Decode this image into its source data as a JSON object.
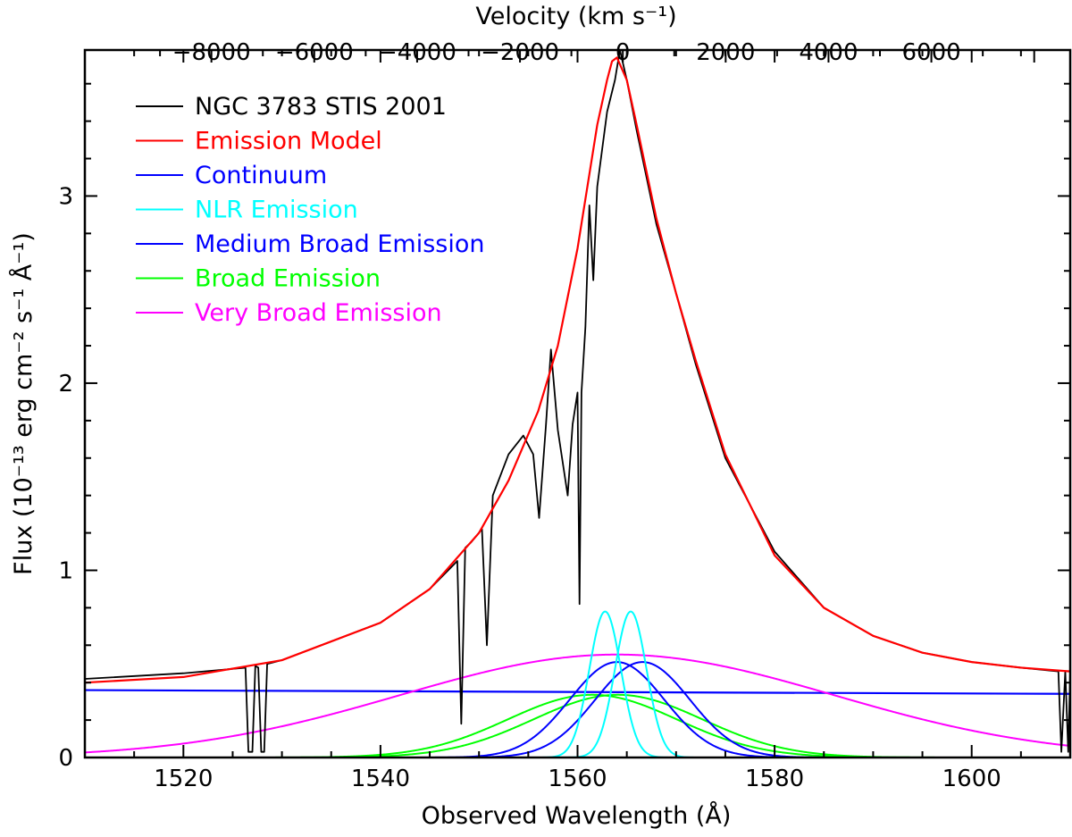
{
  "chart_data": {
    "type": "line",
    "title": "",
    "xlabel": "Observed Wavelength (Å)",
    "ylabel": "Flux (10⁻¹³ erg cm⁻² s⁻¹ Å⁻¹)",
    "top_xlabel": "Velocity (km s⁻¹)",
    "xlim": [
      1510,
      1610
    ],
    "ylim": [
      0,
      3.78
    ],
    "x_ticks": [
      1520,
      1540,
      1560,
      1580,
      1600
    ],
    "x_tick_labels": [
      "1520",
      "1540",
      "1560",
      "1580",
      "1600"
    ],
    "y_ticks": [
      0,
      1,
      2,
      3
    ],
    "y_tick_labels": [
      "0",
      "1",
      "2",
      "3"
    ],
    "top_ticks": [
      -8000,
      -6000,
      -4000,
      -2000,
      0,
      2000,
      4000,
      6000
    ],
    "top_tick_labels": [
      "−8000",
      "−6000",
      "−4000",
      "−2000",
      "0",
      "2000",
      "4000",
      "6000"
    ],
    "top_axis_rest_wavelength": 1549.48,
    "top_axis_systemic_z": 0.009755,
    "legend_position": "top-left",
    "legend": [
      {
        "label": "NGC 3783 STIS 2001",
        "color": "#000000"
      },
      {
        "label": "Emission Model",
        "color": "#ff0000"
      },
      {
        "label": "Continuum",
        "color": "#0000ff"
      },
      {
        "label": "NLR Emission",
        "color": "#00ffff"
      },
      {
        "label": "Medium Broad Emission",
        "color": "#0000ff"
      },
      {
        "label": "Broad Emission",
        "color": "#00ff00"
      },
      {
        "label": "Very Broad Emission",
        "color": "#ff00ff"
      }
    ],
    "series": [
      {
        "name": "Continuum",
        "color": "#0000ff",
        "x": [
          1510,
          1610
        ],
        "y": [
          0.36,
          0.34
        ]
      },
      {
        "name": "NLR Emission",
        "color": "#00ffff",
        "components": [
          {
            "center": 1562.8,
            "amplitude": 0.78,
            "sigma": 1.6
          },
          {
            "center": 1565.4,
            "amplitude": 0.78,
            "sigma": 1.6
          }
        ]
      },
      {
        "name": "Medium Broad Emission",
        "color": "#0000ff",
        "components": [
          {
            "center": 1564.0,
            "amplitude": 0.51,
            "sigma": 4.8
          },
          {
            "center": 1566.6,
            "amplitude": 0.51,
            "sigma": 4.8
          }
        ]
      },
      {
        "name": "Broad Emission",
        "color": "#00ff00",
        "components": [
          {
            "center": 1561.5,
            "amplitude": 0.335,
            "sigma": 8.6
          },
          {
            "center": 1564.1,
            "amplitude": 0.335,
            "sigma": 8.6
          }
        ]
      },
      {
        "name": "Very Broad Emission",
        "color": "#ff00ff",
        "components": [
          {
            "center": 1564.0,
            "amplitude": 0.55,
            "sigma": 22.0
          }
        ]
      },
      {
        "name": "Emission Model",
        "color": "#ff0000",
        "x": [
          1510,
          1520,
          1530,
          1540,
          1545,
          1550,
          1553,
          1556,
          1558,
          1560,
          1561,
          1562,
          1563,
          1563.5,
          1564,
          1565,
          1566,
          1568,
          1570,
          1572,
          1575,
          1580,
          1585,
          1590,
          1595,
          1600,
          1605,
          1610
        ],
        "y": [
          0.4,
          0.43,
          0.52,
          0.72,
          0.9,
          1.2,
          1.48,
          1.85,
          2.2,
          2.72,
          3.05,
          3.38,
          3.62,
          3.72,
          3.74,
          3.62,
          3.38,
          2.88,
          2.48,
          2.12,
          1.62,
          1.08,
          0.8,
          0.65,
          0.56,
          0.51,
          0.48,
          0.46
        ]
      },
      {
        "name": "NGC 3783 STIS 2001",
        "color": "#000000",
        "x": [
          1510,
          1520,
          1526.3,
          1526.6,
          1527.0,
          1527.3,
          1527.6,
          1527.9,
          1528.2,
          1528.5,
          1530,
          1540,
          1545,
          1547.8,
          1548.2,
          1548.6,
          1549.2,
          1550.3,
          1550.8,
          1551.4,
          1553,
          1554.5,
          1555.5,
          1556.1,
          1556.8,
          1557.3,
          1558.0,
          1559.0,
          1559.5,
          1560.0,
          1560.2,
          1560.4,
          1560.8,
          1561.2,
          1561.6,
          1562.0,
          1563.0,
          1563.8,
          1564.3,
          1565,
          1566,
          1568,
          1570,
          1572,
          1575,
          1580,
          1585,
          1590,
          1595,
          1600,
          1605,
          1608.8,
          1609.1,
          1609.5,
          1609.8,
          1610
        ],
        "y": [
          0.42,
          0.45,
          0.48,
          0.03,
          0.03,
          0.49,
          0.48,
          0.03,
          0.03,
          0.5,
          0.52,
          0.72,
          0.9,
          1.05,
          0.18,
          1.12,
          1.15,
          1.22,
          0.6,
          1.4,
          1.62,
          1.72,
          1.62,
          1.28,
          1.78,
          2.18,
          1.75,
          1.4,
          1.78,
          1.95,
          0.82,
          1.95,
          2.3,
          2.95,
          2.55,
          3.05,
          3.45,
          3.62,
          3.78,
          3.62,
          3.35,
          2.85,
          2.48,
          2.1,
          1.6,
          1.1,
          0.8,
          0.65,
          0.56,
          0.51,
          0.48,
          0.46,
          0.03,
          0.46,
          0.03,
          0.46
        ]
      }
    ]
  }
}
